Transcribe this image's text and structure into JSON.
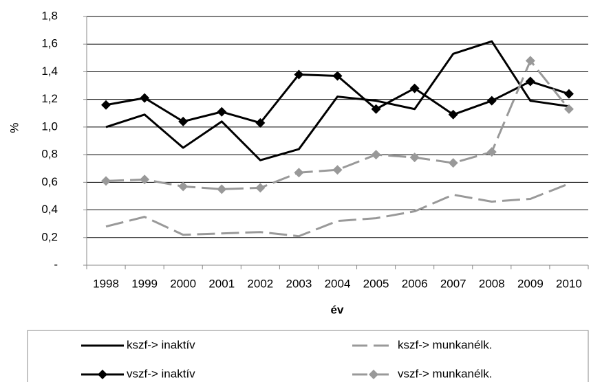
{
  "chart_data": {
    "type": "line",
    "x_label": "év",
    "y_label": "%",
    "categories": [
      "1998",
      "1999",
      "2000",
      "2001",
      "2002",
      "2003",
      "2004",
      "2005",
      "2006",
      "2007",
      "2008",
      "2009",
      "2010"
    ],
    "series": [
      {
        "name": "kszf-> inaktív",
        "color": "#000000",
        "dashed": false,
        "marker": "none",
        "values": [
          1.0,
          1.09,
          0.85,
          1.04,
          0.76,
          0.84,
          1.22,
          1.19,
          1.13,
          1.53,
          1.62,
          1.19,
          1.15
        ]
      },
      {
        "name": "kszf-> munkanélk.",
        "color": "#999999",
        "dashed": true,
        "marker": "none",
        "values": [
          0.28,
          0.35,
          0.22,
          0.23,
          0.24,
          0.21,
          0.32,
          0.34,
          0.39,
          0.51,
          0.46,
          0.48,
          0.59
        ]
      },
      {
        "name": "vszf-> inaktív",
        "color": "#000000",
        "dashed": false,
        "marker": "diamond",
        "values": [
          1.16,
          1.21,
          1.04,
          1.11,
          1.03,
          1.38,
          1.37,
          1.13,
          1.28,
          1.09,
          1.19,
          1.33,
          1.24
        ]
      },
      {
        "name": "vszf-> munkanélk.",
        "color": "#999999",
        "dashed": true,
        "marker": "diamond",
        "values": [
          0.61,
          0.62,
          0.57,
          0.55,
          0.56,
          0.67,
          0.69,
          0.8,
          0.78,
          0.74,
          0.82,
          1.48,
          1.13
        ]
      }
    ],
    "ylim": [
      0,
      1.8
    ],
    "yticks": [
      {
        "value": 0,
        "label": "-"
      },
      {
        "value": 0.2,
        "label": "0,2"
      },
      {
        "value": 0.4,
        "label": "0,4"
      },
      {
        "value": 0.6,
        "label": "0,6"
      },
      {
        "value": 0.8,
        "label": "0,8"
      },
      {
        "value": 1.0,
        "label": "1,0"
      },
      {
        "value": 1.2,
        "label": "1,2"
      },
      {
        "value": 1.4,
        "label": "1,4"
      },
      {
        "value": 1.6,
        "label": "1,6"
      },
      {
        "value": 1.8,
        "label": "1,8"
      }
    ],
    "grid": true,
    "legend": "bottom"
  }
}
